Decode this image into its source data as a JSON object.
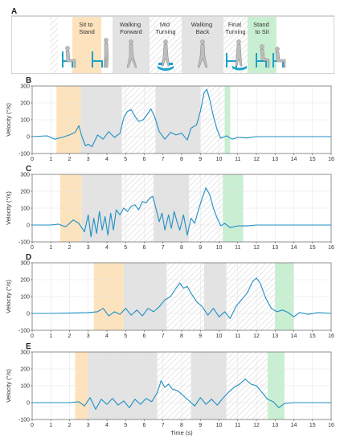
{
  "panel_a": {
    "letter": "A",
    "phases": [
      {
        "label": "Sit to\nStand",
        "kind": "orange"
      },
      {
        "label": "Walking\nForward",
        "kind": "gray"
      },
      {
        "label": "Mid\nTurning",
        "kind": "hatch"
      },
      {
        "label": "Walking\nBack",
        "kind": "gray"
      },
      {
        "label": "Final\nTurning",
        "kind": "hatch"
      },
      {
        "label": "Stand\nto Sit",
        "kind": "green"
      }
    ],
    "colors": {
      "orange": "#fde3bd",
      "gray": "#e3e3e3",
      "green": "#c9efd2",
      "figure": "#1aa2c9"
    }
  },
  "chart_data": [
    {
      "type": "line",
      "panel": "B",
      "ylabel": "Velocity (°/s)",
      "xlabel": "",
      "xlim": [
        0,
        16
      ],
      "ylim": [
        -100,
        300
      ],
      "xticks": [
        0,
        1,
        2,
        3,
        4,
        5,
        6,
        7,
        8,
        9,
        10,
        11,
        12,
        13,
        14,
        15,
        16
      ],
      "yticks": [
        -100,
        0,
        100,
        200,
        300
      ],
      "phases": [
        [
          1.3,
          2.6,
          "orange"
        ],
        [
          2.6,
          4.8,
          "gray"
        ],
        [
          4.8,
          6.6,
          "hatch"
        ],
        [
          6.6,
          9.0,
          "gray"
        ],
        [
          9.0,
          10.3,
          "hatch"
        ],
        [
          10.3,
          10.6,
          "green"
        ]
      ],
      "series": [
        {
          "color": "#1f8fc4",
          "points": [
            [
              0,
              0
            ],
            [
              0.8,
              5
            ],
            [
              1.2,
              -15
            ],
            [
              1.6,
              -5
            ],
            [
              2.0,
              10
            ],
            [
              2.3,
              25
            ],
            [
              2.5,
              65
            ],
            [
              2.65,
              5
            ],
            [
              2.85,
              -55
            ],
            [
              3.0,
              -45
            ],
            [
              3.2,
              -60
            ],
            [
              3.5,
              10
            ],
            [
              3.8,
              -15
            ],
            [
              4.1,
              30
            ],
            [
              4.4,
              -5
            ],
            [
              4.7,
              20
            ],
            [
              4.9,
              110
            ],
            [
              5.1,
              150
            ],
            [
              5.3,
              160
            ],
            [
              5.5,
              120
            ],
            [
              5.7,
              90
            ],
            [
              5.95,
              100
            ],
            [
              6.15,
              130
            ],
            [
              6.35,
              165
            ],
            [
              6.55,
              120
            ],
            [
              6.8,
              30
            ],
            [
              7.1,
              -15
            ],
            [
              7.4,
              25
            ],
            [
              7.7,
              10
            ],
            [
              8.0,
              20
            ],
            [
              8.3,
              -20
            ],
            [
              8.5,
              50
            ],
            [
              8.8,
              70
            ],
            [
              9.0,
              150
            ],
            [
              9.2,
              260
            ],
            [
              9.35,
              280
            ],
            [
              9.5,
              220
            ],
            [
              9.7,
              120
            ],
            [
              9.9,
              40
            ],
            [
              10.1,
              -10
            ],
            [
              10.4,
              5
            ],
            [
              10.7,
              -15
            ],
            [
              11.0,
              -5
            ],
            [
              11.5,
              -8
            ],
            [
              12,
              0
            ],
            [
              13,
              0
            ],
            [
              14,
              0
            ],
            [
              15,
              0
            ],
            [
              16,
              0
            ]
          ]
        }
      ]
    },
    {
      "type": "line",
      "panel": "C",
      "ylabel": "Velocity (°/s)",
      "xlabel": "",
      "xlim": [
        0,
        16
      ],
      "ylim": [
        -100,
        300
      ],
      "xticks": [
        0,
        1,
        2,
        3,
        4,
        5,
        6,
        7,
        8,
        9,
        10,
        11,
        12,
        13,
        14,
        15,
        16
      ],
      "yticks": [
        -100,
        0,
        100,
        200,
        300
      ],
      "phases": [
        [
          1.5,
          2.65,
          "orange"
        ],
        [
          2.65,
          4.8,
          "gray"
        ],
        [
          4.8,
          6.5,
          "hatch"
        ],
        [
          6.5,
          8.4,
          "gray"
        ],
        [
          8.4,
          10.2,
          "hatch"
        ],
        [
          10.2,
          11.3,
          "green"
        ]
      ],
      "series": [
        {
          "color": "#1f8fc4",
          "points": [
            [
              0,
              0
            ],
            [
              1.0,
              0
            ],
            [
              1.4,
              5
            ],
            [
              1.8,
              -10
            ],
            [
              2.2,
              30
            ],
            [
              2.5,
              10
            ],
            [
              2.8,
              -40
            ],
            [
              3.0,
              60
            ],
            [
              3.15,
              -70
            ],
            [
              3.3,
              40
            ],
            [
              3.45,
              -50
            ],
            [
              3.6,
              80
            ],
            [
              3.75,
              -30
            ],
            [
              3.9,
              50
            ],
            [
              4.05,
              -60
            ],
            [
              4.2,
              70
            ],
            [
              4.35,
              -30
            ],
            [
              4.5,
              90
            ],
            [
              4.7,
              60
            ],
            [
              4.9,
              100
            ],
            [
              5.1,
              80
            ],
            [
              5.3,
              110
            ],
            [
              5.5,
              120
            ],
            [
              5.7,
              90
            ],
            [
              5.9,
              140
            ],
            [
              6.1,
              130
            ],
            [
              6.3,
              160
            ],
            [
              6.45,
              170
            ],
            [
              6.6,
              110
            ],
            [
              6.8,
              20
            ],
            [
              6.95,
              70
            ],
            [
              7.1,
              -30
            ],
            [
              7.3,
              60
            ],
            [
              7.45,
              -20
            ],
            [
              7.6,
              80
            ],
            [
              7.75,
              20
            ],
            [
              7.9,
              -30
            ],
            [
              8.1,
              60
            ],
            [
              8.3,
              -60
            ],
            [
              8.5,
              40
            ],
            [
              8.7,
              10
            ],
            [
              8.9,
              90
            ],
            [
              9.1,
              160
            ],
            [
              9.3,
              220
            ],
            [
              9.5,
              180
            ],
            [
              9.7,
              100
            ],
            [
              9.9,
              40
            ],
            [
              10.1,
              -5
            ],
            [
              10.3,
              10
            ],
            [
              10.6,
              -15
            ],
            [
              11.0,
              -5
            ],
            [
              11.5,
              -5
            ],
            [
              12,
              0
            ],
            [
              13,
              0
            ],
            [
              14,
              0
            ],
            [
              15,
              0
            ],
            [
              16,
              0
            ]
          ]
        }
      ]
    },
    {
      "type": "line",
      "panel": "D",
      "ylabel": "Velocity (°/s)",
      "xlabel": "",
      "xlim": [
        0,
        16
      ],
      "ylim": [
        -100,
        300
      ],
      "xticks": [
        0,
        1,
        2,
        3,
        4,
        5,
        6,
        7,
        8,
        9,
        10,
        11,
        12,
        13,
        14,
        15,
        16
      ],
      "yticks": [
        -100,
        0,
        100,
        200,
        300
      ],
      "phases": [
        [
          3.3,
          4.9,
          "orange"
        ],
        [
          4.9,
          7.2,
          "gray"
        ],
        [
          7.2,
          9.2,
          "hatch"
        ],
        [
          9.2,
          10.4,
          "gray"
        ],
        [
          10.4,
          13.0,
          "hatch"
        ],
        [
          13.0,
          14.0,
          "green"
        ]
      ],
      "series": [
        {
          "color": "#1f8fc4",
          "points": [
            [
              0,
              0
            ],
            [
              1,
              0
            ],
            [
              2,
              2
            ],
            [
              3,
              5
            ],
            [
              3.5,
              10
            ],
            [
              3.8,
              30
            ],
            [
              4.1,
              -15
            ],
            [
              4.4,
              10
            ],
            [
              4.7,
              -5
            ],
            [
              5.0,
              30
            ],
            [
              5.3,
              -10
            ],
            [
              5.6,
              20
            ],
            [
              5.9,
              -15
            ],
            [
              6.2,
              30
            ],
            [
              6.5,
              10
            ],
            [
              6.8,
              40
            ],
            [
              7.1,
              80
            ],
            [
              7.4,
              100
            ],
            [
              7.7,
              150
            ],
            [
              7.9,
              180
            ],
            [
              8.1,
              150
            ],
            [
              8.3,
              160
            ],
            [
              8.5,
              120
            ],
            [
              8.8,
              70
            ],
            [
              9.1,
              40
            ],
            [
              9.4,
              -10
            ],
            [
              9.7,
              30
            ],
            [
              10.0,
              -20
            ],
            [
              10.3,
              10
            ],
            [
              10.6,
              -30
            ],
            [
              10.9,
              40
            ],
            [
              11.2,
              80
            ],
            [
              11.5,
              120
            ],
            [
              11.8,
              190
            ],
            [
              12.0,
              210
            ],
            [
              12.2,
              180
            ],
            [
              12.5,
              90
            ],
            [
              12.8,
              30
            ],
            [
              13.1,
              10
            ],
            [
              13.4,
              20
            ],
            [
              13.7,
              5
            ],
            [
              14.0,
              -20
            ],
            [
              14.3,
              5
            ],
            [
              14.8,
              -5
            ],
            [
              15.3,
              5
            ],
            [
              16,
              0
            ]
          ]
        }
      ]
    },
    {
      "type": "line",
      "panel": "E",
      "ylabel": "Velocity (°/s)",
      "xlabel": "Time (s)",
      "xlim": [
        0,
        16
      ],
      "ylim": [
        -100,
        300
      ],
      "xticks": [
        0,
        1,
        2,
        3,
        4,
        5,
        6,
        7,
        8,
        9,
        10,
        11,
        12,
        13,
        14,
        15,
        16
      ],
      "yticks": [
        -100,
        0,
        100,
        200,
        300
      ],
      "phases": [
        [
          2.3,
          3.0,
          "orange"
        ],
        [
          3.0,
          6.7,
          "gray"
        ],
        [
          6.7,
          8.5,
          "hatch"
        ],
        [
          8.5,
          10.4,
          "gray"
        ],
        [
          10.4,
          12.6,
          "hatch"
        ],
        [
          12.6,
          13.5,
          "green"
        ]
      ],
      "series": [
        {
          "color": "#1f8fc4",
          "points": [
            [
              0,
              0
            ],
            [
              1,
              0
            ],
            [
              2,
              0
            ],
            [
              2.5,
              5
            ],
            [
              2.8,
              -20
            ],
            [
              3.1,
              30
            ],
            [
              3.4,
              -40
            ],
            [
              3.7,
              20
            ],
            [
              4.0,
              -10
            ],
            [
              4.3,
              25
            ],
            [
              4.6,
              -15
            ],
            [
              4.9,
              10
            ],
            [
              5.2,
              -30
            ],
            [
              5.5,
              20
            ],
            [
              5.8,
              -10
            ],
            [
              6.1,
              25
            ],
            [
              6.4,
              5
            ],
            [
              6.7,
              60
            ],
            [
              6.9,
              130
            ],
            [
              7.1,
              90
            ],
            [
              7.3,
              110
            ],
            [
              7.5,
              80
            ],
            [
              7.8,
              70
            ],
            [
              8.1,
              40
            ],
            [
              8.4,
              10
            ],
            [
              8.7,
              -20
            ],
            [
              9.0,
              30
            ],
            [
              9.3,
              -10
            ],
            [
              9.6,
              20
            ],
            [
              9.9,
              -15
            ],
            [
              10.2,
              25
            ],
            [
              10.5,
              60
            ],
            [
              10.8,
              90
            ],
            [
              11.1,
              110
            ],
            [
              11.4,
              140
            ],
            [
              11.7,
              110
            ],
            [
              12.0,
              100
            ],
            [
              12.3,
              60
            ],
            [
              12.6,
              20
            ],
            [
              12.9,
              5
            ],
            [
              13.2,
              -30
            ],
            [
              13.5,
              -5
            ],
            [
              14,
              0
            ],
            [
              15,
              0
            ],
            [
              16,
              0
            ]
          ]
        }
      ]
    }
  ]
}
